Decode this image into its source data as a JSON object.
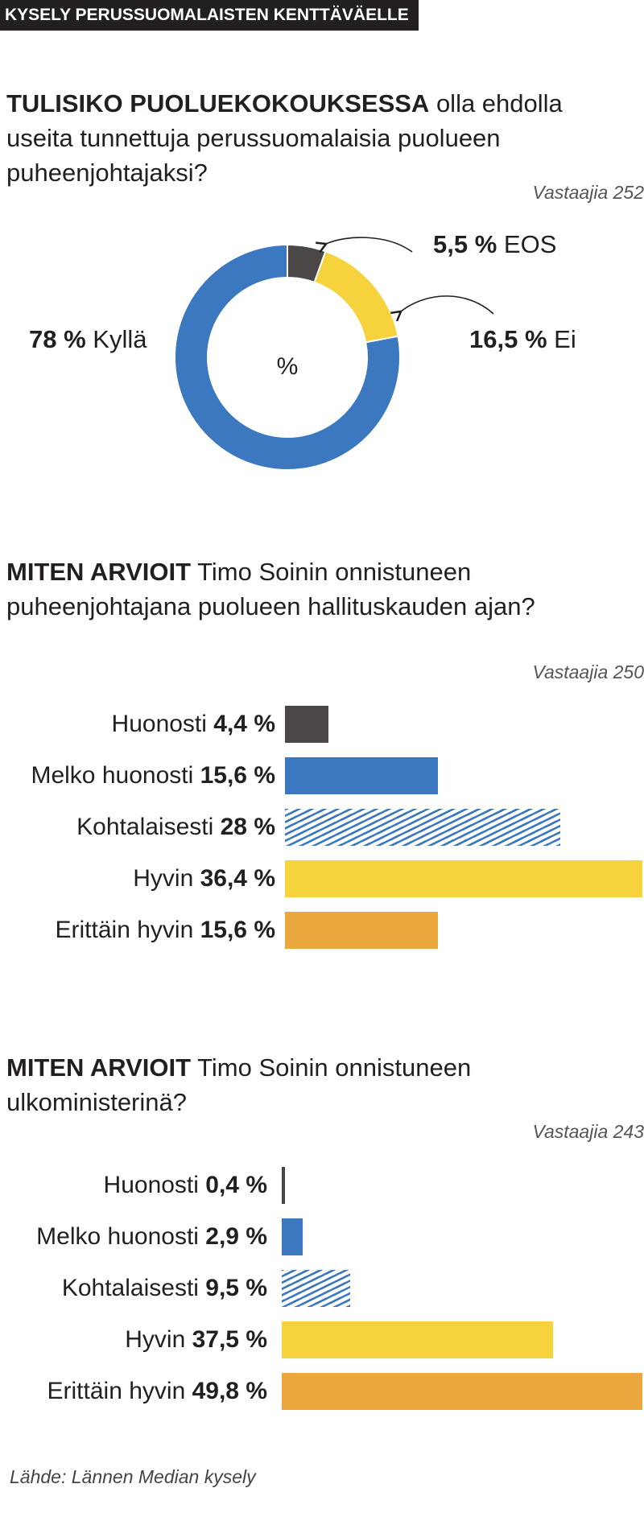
{
  "header": {
    "title": "KYSELY PERUSSUOMALAISTEN KENTTÄVÄELLE"
  },
  "colors": {
    "dark": "#4a4746",
    "blue": "#3b78bf",
    "yellow": "#f6d33d",
    "orange": "#e9a73d",
    "text": "#231f20"
  },
  "chart_data": [
    {
      "type": "pie",
      "question_lead": "TULISIKO PUOLUEKOKOUKSESSA",
      "question_rest": " olla ehdolla useita tunnettuja perussuomalaisia puolueen puheenjohtajaksi?",
      "respondents": "Vastaajia 252",
      "center_label": "%",
      "slices": [
        {
          "value": 5.5,
          "value_text": "5,5 %",
          "label": "EOS",
          "color": "#4a4746"
        },
        {
          "value": 16.5,
          "value_text": "16,5 %",
          "label": "Ei",
          "color": "#f6d33d"
        },
        {
          "value": 78,
          "value_text": "78 %",
          "label": "Kyllä",
          "color": "#3b78bf"
        }
      ]
    },
    {
      "type": "bar",
      "question_lead": "MITEN ARVIOIT",
      "question_rest": " Timo Soinin onnistuneen puheenjohtajana puolueen hallituskauden ajan?",
      "respondents": "Vastaajia 250",
      "xlim": [
        0,
        36.4
      ],
      "bars": [
        {
          "label": "Huonosti",
          "value": 4.4,
          "value_text": "4,4 %",
          "color": "#4a4746",
          "pattern": "solid"
        },
        {
          "label": "Melko huonosti",
          "value": 15.6,
          "value_text": "15,6 %",
          "color": "#3b78bf",
          "pattern": "solid"
        },
        {
          "label": "Kohtalaisesti",
          "value": 28,
          "value_text": "28 %",
          "color": "#3b78bf",
          "pattern": "hatched"
        },
        {
          "label": "Hyvin",
          "value": 36.4,
          "value_text": "36,4 %",
          "color": "#f6d33d",
          "pattern": "solid"
        },
        {
          "label": "Erittäin hyvin",
          "value": 15.6,
          "value_text": "15,6 %",
          "color": "#e9a73d",
          "pattern": "solid"
        }
      ]
    },
    {
      "type": "bar",
      "question_lead": "MITEN ARVIOIT",
      "question_rest": " Timo Soinin onnistuneen ulkoministerinä?",
      "respondents": "Vastaajia 243",
      "xlim": [
        0,
        49.8
      ],
      "bars": [
        {
          "label": "Huonosti",
          "value": 0.4,
          "value_text": "0,4 %",
          "color": "#4a4746",
          "pattern": "solid"
        },
        {
          "label": "Melko huonosti",
          "value": 2.9,
          "value_text": "2,9 %",
          "color": "#3b78bf",
          "pattern": "solid"
        },
        {
          "label": "Kohtalaisesti",
          "value": 9.5,
          "value_text": "9,5 %",
          "color": "#3b78bf",
          "pattern": "hatched"
        },
        {
          "label": "Hyvin",
          "value": 37.5,
          "value_text": "37,5 %",
          "color": "#f6d33d",
          "pattern": "solid"
        },
        {
          "label": "Erittäin hyvin",
          "value": 49.8,
          "value_text": "49,8 %",
          "color": "#e9a73d",
          "pattern": "solid"
        }
      ]
    }
  ],
  "source": "Lähde: Lännen Median kysely"
}
